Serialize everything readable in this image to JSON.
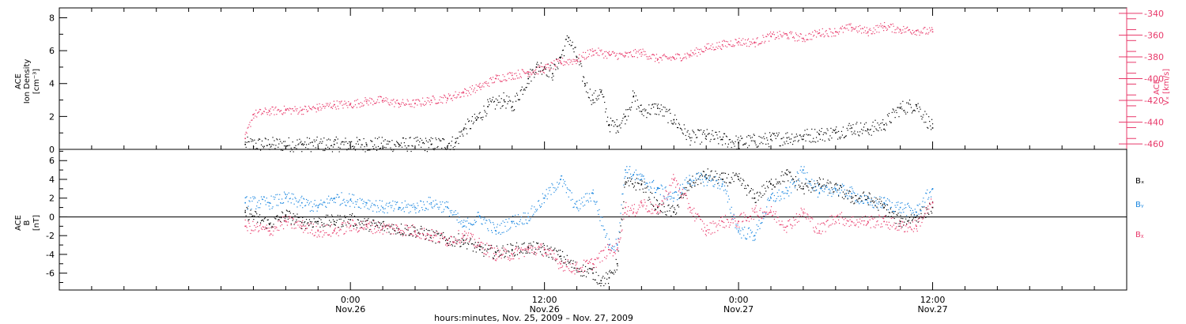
{
  "chart_data": [
    {
      "type": "scatter",
      "panel": "top",
      "ylabel_lines": [
        "ACE",
        "Ion Density",
        "[cm⁻³]"
      ],
      "ylim": [
        0,
        8.6
      ],
      "yticks": [
        0,
        2,
        4,
        6,
        8
      ],
      "right_axis": {
        "label_lines": [
          "ACE",
          "Vₓ [km/s]"
        ],
        "ylim": [
          -465,
          -335
        ],
        "yticks": [
          -460,
          -440,
          -420,
          -400,
          -380,
          -360,
          -340
        ]
      },
      "colors": {
        "density": "#000000",
        "vx": "#e8396a"
      },
      "series": [
        {
          "axis": "left",
          "color": "#000000",
          "x": [
            -6.5,
            -5,
            -3,
            -1,
            1,
            3,
            5,
            6.5,
            7,
            7.8,
            8.5,
            9.5,
            10,
            11,
            11.5,
            12,
            12.5,
            13,
            13.5,
            14,
            14.5,
            15,
            15.5,
            16,
            16.5,
            17,
            17.5,
            18,
            19,
            20,
            21,
            22,
            23,
            24,
            25,
            26,
            27,
            28,
            29,
            30,
            31,
            32,
            33,
            34,
            35,
            36
          ],
          "y": [
            0.3,
            0.3,
            0.3,
            0.3,
            0.3,
            0.3,
            0.3,
            0.4,
            1.2,
            1.8,
            2.6,
            3.0,
            2.6,
            4.3,
            5.0,
            5.0,
            4.6,
            5.6,
            6.8,
            5.6,
            4.0,
            3.0,
            3.5,
            1.5,
            1.4,
            2.0,
            3.2,
            2.3,
            2.5,
            1.8,
            0.7,
            0.8,
            0.6,
            0.4,
            0.5,
            0.6,
            0.7,
            0.8,
            0.9,
            1.0,
            1.3,
            1.2,
            1.5,
            2.5,
            2.7,
            1.3
          ]
        },
        {
          "axis": "right",
          "color": "#e8396a",
          "x": [
            -6.5,
            -6,
            -5,
            -4,
            -3,
            -2,
            -1,
            0,
            1,
            2,
            3,
            4,
            5,
            6,
            7,
            8,
            9,
            10,
            11,
            12,
            13,
            14,
            15,
            16,
            17,
            18,
            19,
            20,
            21,
            22,
            23,
            24,
            25,
            26,
            27,
            28,
            29,
            30,
            31,
            32,
            33,
            34,
            35,
            36
          ],
          "y": [
            -455,
            -433,
            -430,
            -429,
            -429,
            -427,
            -424,
            -424,
            -421,
            -420,
            -423,
            -423,
            -420,
            -418,
            -413,
            -408,
            -400,
            -397,
            -394,
            -391,
            -385,
            -383,
            -375,
            -378,
            -379,
            -376,
            -382,
            -381,
            -378,
            -372,
            -369,
            -366,
            -367,
            -361,
            -360,
            -363,
            -358,
            -357,
            -353,
            -357,
            -352,
            -355,
            -356,
            -357
          ]
        }
      ]
    },
    {
      "type": "scatter",
      "panel": "bottom",
      "ylabel_lines": [
        "ACE",
        "B",
        "[nT]"
      ],
      "ylim": [
        -7.8,
        7.2
      ],
      "yticks": [
        -6,
        -4,
        -2,
        0,
        2,
        4,
        6
      ],
      "zero_line": true,
      "series": [
        {
          "name": "Bₓ",
          "color": "#000000",
          "x": [
            -6.5,
            -5,
            -4,
            -3,
            -2,
            -1,
            0,
            1,
            2,
            3,
            4,
            5,
            6,
            7,
            8,
            9,
            10,
            11,
            12,
            13,
            14,
            15,
            15.5,
            16,
            16.5,
            17,
            18,
            19,
            20,
            21,
            22,
            23,
            24,
            25,
            26,
            27,
            28,
            29,
            30,
            31,
            32,
            33,
            34,
            35,
            36
          ],
          "y": [
            0.5,
            -0.8,
            0.2,
            -0.6,
            -0.5,
            -0.5,
            -0.3,
            -0.8,
            -1.0,
            -1.3,
            -1.5,
            -2.0,
            -2.5,
            -2.5,
            -3.5,
            -3.8,
            -3.5,
            -3.3,
            -3.5,
            -4.2,
            -5.5,
            -6.0,
            -6.8,
            -6.5,
            -5.0,
            3.5,
            3.5,
            1.0,
            0.5,
            3.5,
            4.5,
            4.0,
            4.0,
            2.0,
            3.5,
            4.5,
            3.0,
            3.5,
            3.0,
            2.0,
            2.0,
            1.0,
            -0.5,
            0.0,
            1.0
          ]
        },
        {
          "name": "Bᵧ",
          "color": "#1b87e0",
          "x": [
            -6.5,
            -5,
            -4,
            -3,
            -2,
            -1,
            0,
            1,
            2,
            3,
            4,
            5,
            6,
            7,
            8,
            9,
            10,
            11,
            12,
            13,
            14,
            15,
            16,
            16.5,
            17,
            17.5,
            18,
            19,
            20,
            21,
            22,
            23,
            24,
            25,
            26,
            27,
            28,
            29,
            30,
            31,
            32,
            33,
            34,
            35,
            36
          ],
          "y": [
            1.5,
            1.5,
            2.0,
            1.5,
            1.0,
            2.0,
            1.8,
            1.5,
            1.0,
            1.0,
            1.0,
            1.5,
            1.0,
            -1.0,
            0.0,
            -1.5,
            -0.5,
            0.0,
            2.0,
            4.0,
            1.0,
            2.5,
            -3.0,
            -3.0,
            5.0,
            4.5,
            4.0,
            3.0,
            2.0,
            4.0,
            4.0,
            3.5,
            -1.5,
            -2.0,
            2.0,
            2.5,
            5.0,
            2.5,
            3.0,
            2.5,
            1.5,
            1.5,
            1.0,
            0.5,
            3.0
          ]
        },
        {
          "name": "Bᵪ",
          "color": "#e8396a",
          "x": [
            -6.5,
            -5,
            -4,
            -3,
            -2,
            -1,
            0,
            1,
            2,
            3,
            4,
            5,
            6,
            7,
            8,
            9,
            10,
            11,
            12,
            13,
            14,
            15,
            16,
            16.5,
            17,
            17.5,
            18,
            19,
            20,
            21,
            22,
            23,
            24,
            25,
            26,
            27,
            28,
            29,
            30,
            31,
            32,
            33,
            34,
            35,
            36
          ],
          "y": [
            -1.0,
            -1.5,
            -0.5,
            -1.0,
            -1.5,
            -1.5,
            -1.0,
            -1.0,
            -1.2,
            -1.3,
            -1.5,
            -2.0,
            -2.5,
            -2.0,
            -3.0,
            -4.0,
            -4.0,
            -3.5,
            -3.5,
            -5.0,
            -5.5,
            -5.0,
            -3.5,
            -3.5,
            1.0,
            0.5,
            1.5,
            0.5,
            4.0,
            1.0,
            -1.5,
            -0.5,
            -0.5,
            0.5,
            0.5,
            -1.0,
            0.5,
            -1.5,
            0.0,
            -0.5,
            -0.5,
            -0.5,
            -1.0,
            -1.0,
            1.5
          ]
        }
      ],
      "legend": [
        {
          "label": "Bₓ",
          "color": "#000000"
        },
        {
          "label": "Bᵧ",
          "color": "#1b87e0"
        },
        {
          "label": "Bᵪ",
          "color": "#e8396a"
        }
      ]
    }
  ],
  "x_axis": {
    "xlim": [
      -18,
      48
    ],
    "major_ticks": [
      {
        "x": 0,
        "label_time": "0:00",
        "label_date": "Nov.26"
      },
      {
        "x": 12,
        "label_time": "12:00",
        "label_date": "Nov.26"
      },
      {
        "x": 24,
        "label_time": "0:00",
        "label_date": "Nov.27"
      },
      {
        "x": 36,
        "label_time": "12:00",
        "label_date": "Nov.27"
      }
    ],
    "minor_step": 2,
    "xlabel": "hours:minutes, Nov. 25, 2009 – Nov. 27, 2009"
  }
}
